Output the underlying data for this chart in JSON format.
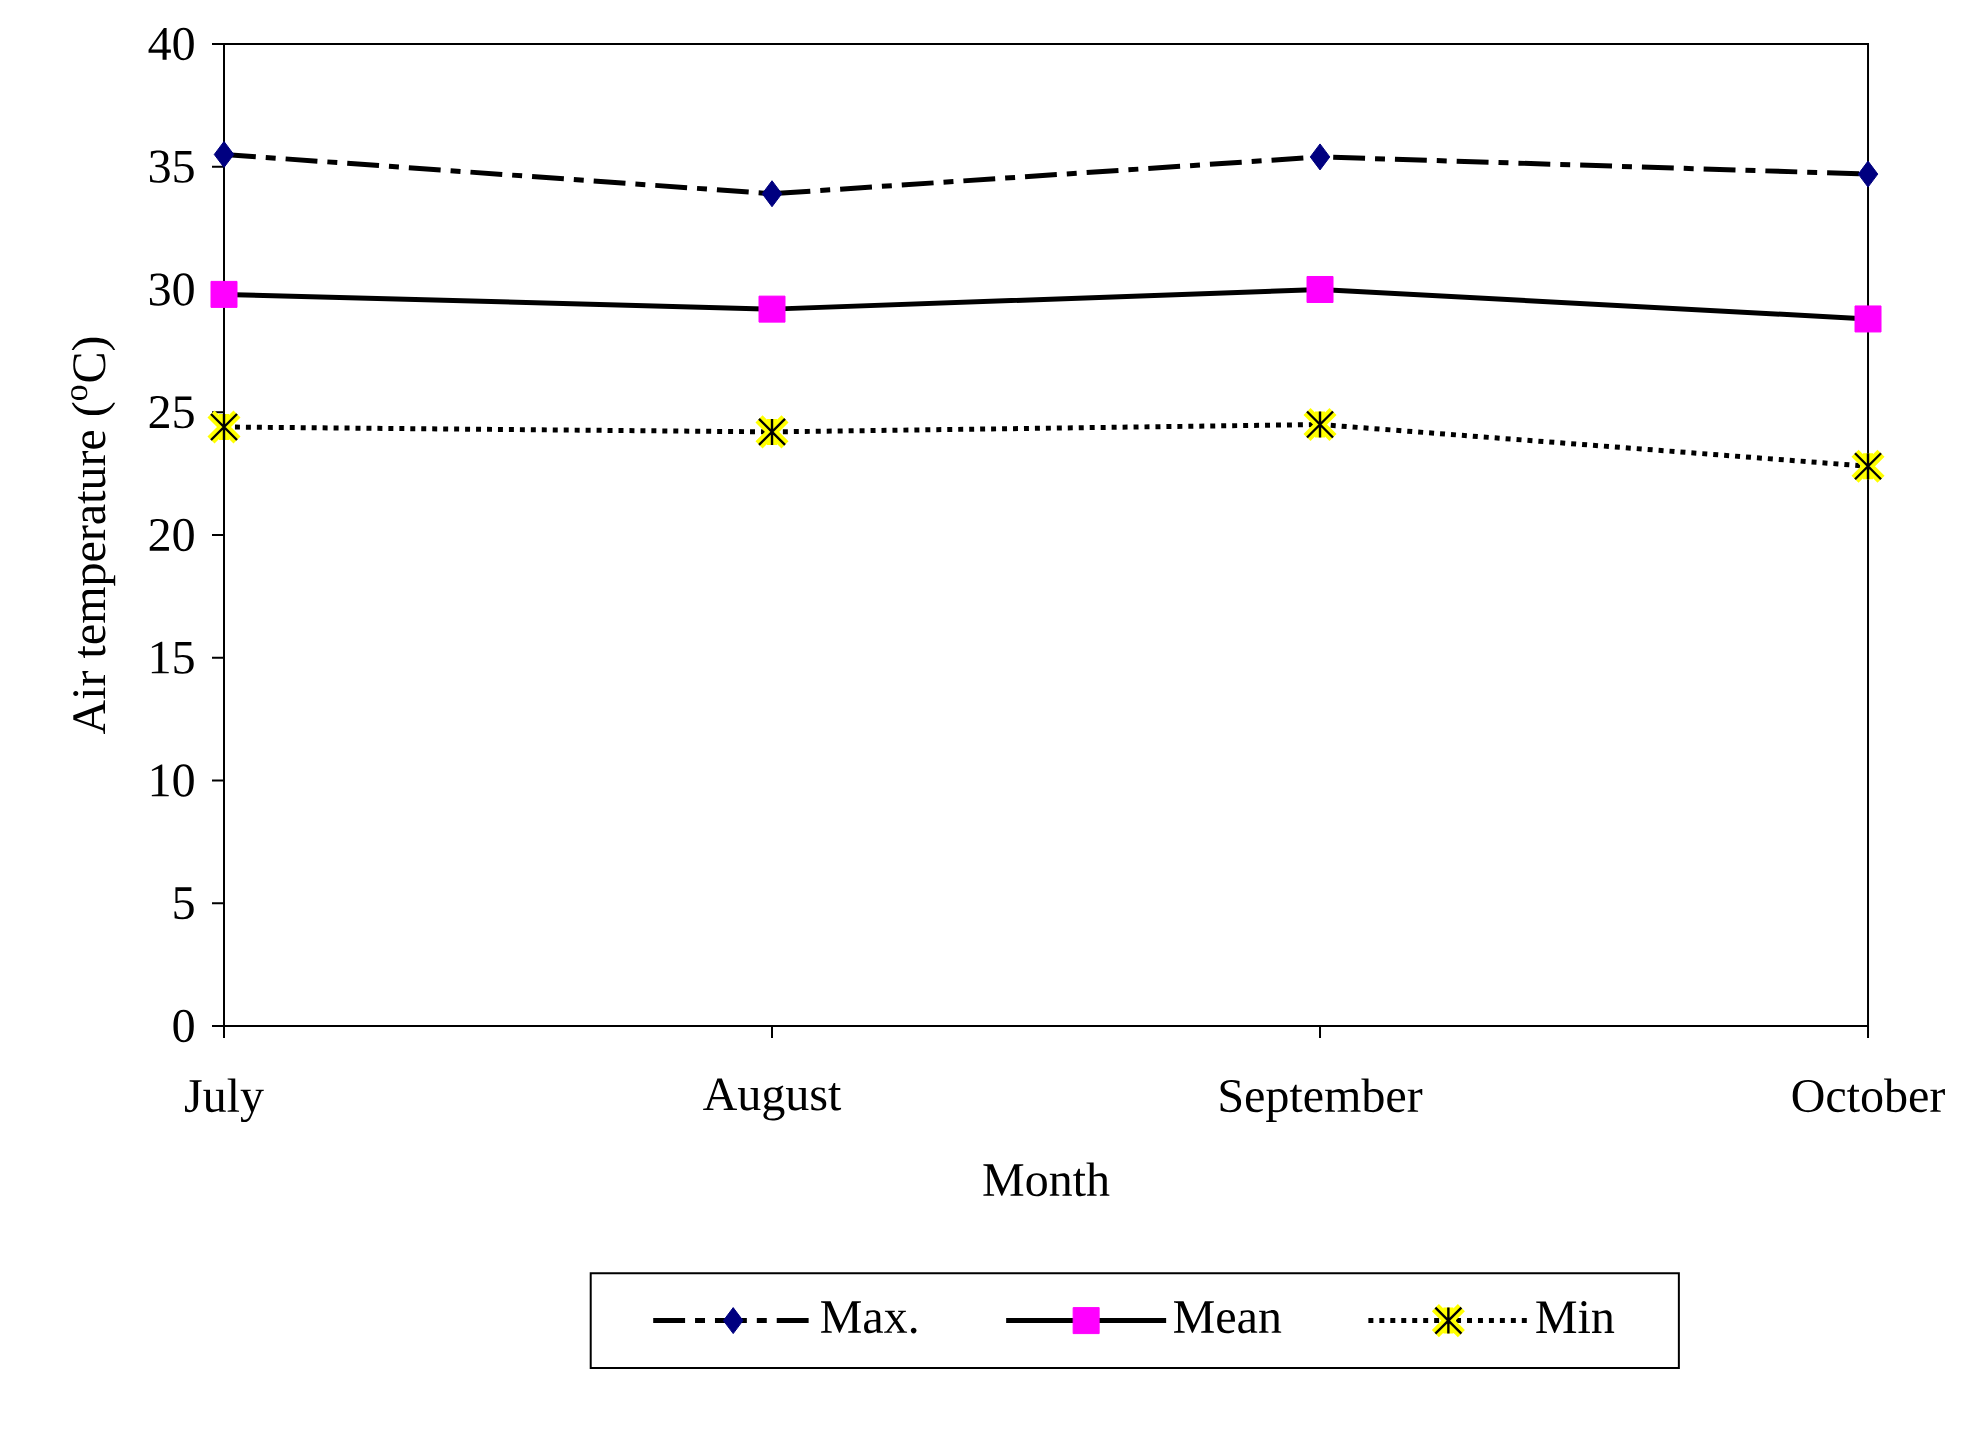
{
  "chart_data": {
    "type": "line",
    "xlabel": "Month",
    "ylabel": "Air temperature ($^{o}$C)",
    "categories": [
      "July",
      "August",
      "September",
      "October"
    ],
    "series": [
      {
        "name": "Max.",
        "color": "#000080",
        "marker": "diamond",
        "line_style": "dashdot",
        "values": [
          35.5,
          33.9,
          35.4,
          34.7
        ]
      },
      {
        "name": "Mean",
        "color": "#ff00ff",
        "marker": "square",
        "line_style": "solid",
        "values": [
          29.8,
          29.2,
          30.0,
          28.8
        ]
      },
      {
        "name": "Min",
        "color": "#ffff00",
        "marker": "cross",
        "line_style": "dotted",
        "values": [
          24.4,
          24.2,
          24.5,
          22.8
        ]
      }
    ],
    "ylim": [
      0,
      40
    ],
    "yticks": [
      0,
      5,
      10,
      15,
      20,
      25,
      30,
      35,
      40
    ],
    "grid": false,
    "legend": "bottom"
  }
}
